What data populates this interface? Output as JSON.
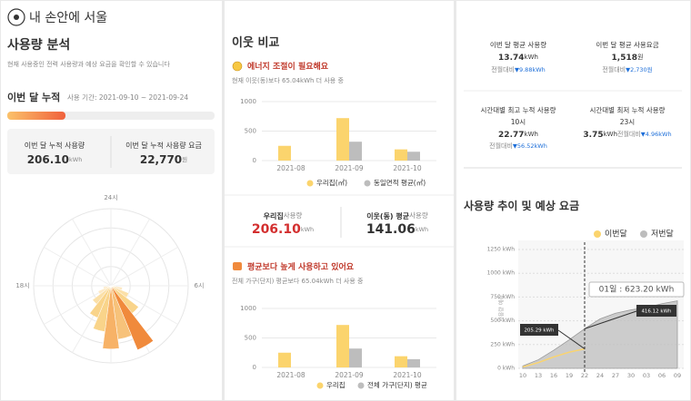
{
  "header": {
    "logo": "내 손안에 서울"
  },
  "usage": {
    "title": "사용량 분석",
    "desc": "현재 사용중인 전력 사용량과 예상 요금을 확인할 수 있습니다",
    "month_label": "이번 달 누적",
    "period": "사용 기간: 2021-09-10  ~  2021-09-24",
    "cards": [
      {
        "label": "이번 달 누적 사용량",
        "value": "206.10",
        "unit": "kWh"
      },
      {
        "label": "이번 달 누적 사용량 요금",
        "value": "22,770",
        "unit": "원"
      }
    ]
  },
  "neighbor": {
    "title": "이웃 비교",
    "status": "에너지 조절이 필요해요",
    "status_desc": "현재 이웃(동)보다 65.04kWh 더 사용 중",
    "compare": [
      {
        "label": "우리집",
        "suffix": "사용량",
        "value": "206.10",
        "unit": "kWh"
      },
      {
        "label": "이웃(동) 평균",
        "suffix": "사용량",
        "value": "141.06",
        "unit": "kWh"
      }
    ],
    "status2": "평균보다 높게 사용하고 있어요",
    "status2_desc": "전체 가구(단지) 평균보다 65.04kWh 더 사용 중"
  },
  "stats": [
    {
      "label": "이번 달 평균 사용량",
      "value": "13.74",
      "unit": "kWh",
      "diff_label": "전월대비",
      "diff": "▼9.88kWh"
    },
    {
      "label": "이번 달 평균 사용요금",
      "value": "1,518",
      "unit": "원",
      "diff_label": "전월대비",
      "diff": "▼2,730원"
    },
    {
      "label": "시간대별 최고 누적 사용량",
      "time": "10시",
      "value": "22.77",
      "unit": "kWh",
      "diff_label": "전월대비",
      "diff": "▼56.52kWh"
    },
    {
      "label": "시간대별 최저 누적 사용량",
      "time": "23시",
      "value": "3.75",
      "unit": "kWh",
      "diff_label": "전월대비",
      "diff": "▼4.96kWh"
    }
  ],
  "trend": {
    "title": "사용량 추이 및 예상 요금"
  },
  "chart_data": [
    {
      "type": "polar",
      "categories": [
        "24시",
        null,
        null,
        null,
        null,
        null,
        "6시",
        null,
        null,
        null,
        null,
        null,
        null,
        null,
        null,
        null,
        null,
        null,
        "18시",
        null,
        null,
        null,
        null,
        null
      ],
      "values": [
        0,
        0,
        0,
        0,
        0,
        0,
        5,
        15,
        25,
        45,
        90,
        70,
        82,
        60,
        45,
        30,
        18,
        10,
        0,
        0,
        0,
        0,
        0,
        0
      ],
      "colors": [
        "#fde9c4",
        "#fde9c4",
        "#fde9c4",
        "#fde9c4",
        "#fde9c4",
        "#fde9c4",
        "#fde9c4",
        "#fde9c4",
        "#fbe0a8",
        "#f9d48a",
        "#f08a3c",
        "#f7c27a",
        "#f7b267",
        "#f9d48a",
        "#f9d48a",
        "#fbe0a8",
        "#fde9c4",
        "#fde9c4",
        "#fde9c4",
        "#fde9c4",
        "#fde9c4",
        "#fde9c4",
        "#fde9c4",
        "#fde9c4"
      ],
      "rlim": [
        0,
        100
      ]
    },
    {
      "type": "bar",
      "categories": [
        "2021-08",
        "2021-09",
        "2021-10"
      ],
      "series": [
        {
          "name": "우리집(㎡)",
          "color": "#fbd46d",
          "values": [
            250,
            720,
            190
          ]
        },
        {
          "name": "동일면적 평균(㎡)",
          "color": "#bdbdbd",
          "values": [
            null,
            320,
            150
          ]
        }
      ],
      "ylim": [
        0,
        1000
      ],
      "yticks": [
        0,
        500,
        1000
      ],
      "grid": true
    },
    {
      "type": "bar",
      "categories": [
        "2021-08",
        "2021-09",
        "2021-10"
      ],
      "series": [
        {
          "name": "우리집",
          "color": "#fbd46d",
          "values": [
            250,
            720,
            190
          ]
        },
        {
          "name": "전체 가구(단지) 평균",
          "color": "#bdbdbd",
          "values": [
            null,
            320,
            140
          ]
        }
      ],
      "ylim": [
        0,
        1000
      ],
      "yticks": [
        0,
        500,
        1000
      ],
      "grid": true
    },
    {
      "type": "area",
      "ylabel": "사용량 예측",
      "categories": [
        "10",
        "13",
        "16",
        "19",
        "22",
        "24",
        "27",
        "30",
        "03",
        "06",
        "09"
      ],
      "series": [
        {
          "name": "이번달",
          "color": "#fbd46d",
          "values": [
            15,
            60,
            120,
            170,
            205.29,
            null,
            null,
            null,
            null,
            null,
            null
          ]
        },
        {
          "name": "저번달",
          "color": "#bdbdbd",
          "values": [
            25,
            90,
            190,
            300,
            416.12,
            520,
            580,
            615,
            640,
            680,
            710
          ]
        }
      ],
      "ylim": [
        0,
        1250
      ],
      "yticks": [
        {
          "value": 0,
          "label": "0 kWh"
        },
        {
          "value": 250,
          "label": "250 kWh"
        },
        {
          "value": 500,
          "label": "500 kWh"
        },
        {
          "value": 750,
          "label": "750 kWh"
        },
        {
          "value": 1000,
          "label": "1000 kWh"
        },
        {
          "value": 1250,
          "label": "1250 kWh"
        }
      ],
      "grid": true,
      "annotations": [
        {
          "text": "01일 : 623.20 kWh"
        },
        {
          "text": "205.29 kWh"
        },
        {
          "text": "416.12 kWh"
        }
      ]
    }
  ]
}
